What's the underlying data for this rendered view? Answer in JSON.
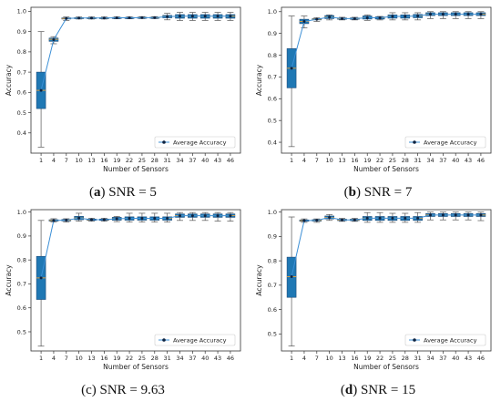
{
  "chart_data": [
    {
      "type": "box",
      "caption": {
        "label": "a",
        "rest": " SNR = 5"
      },
      "xlabel": "Number of Sensors",
      "ylabel": "Accuracy",
      "legend": "Average Accuracy",
      "legend_position": "bottom-right",
      "ylim": [
        0.3,
        1.02
      ],
      "yticks": [
        0.4,
        0.5,
        0.6,
        0.7,
        0.8,
        0.9,
        1.0
      ],
      "ytick_labels": [
        "0.4",
        "0.5",
        "0.6",
        "0.7",
        "0.8",
        "0.9",
        "1.0"
      ],
      "categories": [
        "1",
        "4",
        "7",
        "10",
        "13",
        "16",
        "19",
        "22",
        "25",
        "28",
        "31",
        "34",
        "37",
        "40",
        "43",
        "46"
      ],
      "average": [
        0.61,
        0.86,
        0.965,
        0.967,
        0.967,
        0.967,
        0.968,
        0.968,
        0.969,
        0.969,
        0.974,
        0.976,
        0.976,
        0.976,
        0.976,
        0.976
      ],
      "boxes": [
        {
          "q1": 0.52,
          "median": 0.61,
          "q3": 0.7,
          "low": 0.33,
          "high": 0.9
        },
        {
          "q1": 0.852,
          "median": 0.862,
          "q3": 0.868,
          "low": 0.84,
          "high": 0.875
        },
        {
          "q1": 0.962,
          "median": 0.965,
          "q3": 0.968,
          "low": 0.955,
          "high": 0.972
        },
        {
          "q1": 0.965,
          "median": 0.967,
          "q3": 0.969,
          "low": 0.962,
          "high": 0.972
        },
        {
          "q1": 0.965,
          "median": 0.967,
          "q3": 0.969,
          "low": 0.962,
          "high": 0.972
        },
        {
          "q1": 0.965,
          "median": 0.967,
          "q3": 0.969,
          "low": 0.962,
          "high": 0.972
        },
        {
          "q1": 0.966,
          "median": 0.968,
          "q3": 0.97,
          "low": 0.963,
          "high": 0.973
        },
        {
          "q1": 0.966,
          "median": 0.968,
          "q3": 0.97,
          "low": 0.963,
          "high": 0.973
        },
        {
          "q1": 0.967,
          "median": 0.969,
          "q3": 0.971,
          "low": 0.964,
          "high": 0.974
        },
        {
          "q1": 0.967,
          "median": 0.969,
          "q3": 0.971,
          "low": 0.964,
          "high": 0.974
        },
        {
          "q1": 0.968,
          "median": 0.974,
          "q3": 0.98,
          "low": 0.958,
          "high": 0.99
        },
        {
          "q1": 0.966,
          "median": 0.976,
          "q3": 0.984,
          "low": 0.955,
          "high": 0.995
        },
        {
          "q1": 0.966,
          "median": 0.976,
          "q3": 0.984,
          "low": 0.955,
          "high": 0.995
        },
        {
          "q1": 0.966,
          "median": 0.976,
          "q3": 0.984,
          "low": 0.955,
          "high": 0.995
        },
        {
          "q1": 0.966,
          "median": 0.976,
          "q3": 0.984,
          "low": 0.955,
          "high": 0.995
        },
        {
          "q1": 0.966,
          "median": 0.976,
          "q3": 0.984,
          "low": 0.955,
          "high": 0.995
        }
      ]
    },
    {
      "type": "box",
      "caption": {
        "label": "b",
        "rest": " SNR = 7"
      },
      "xlabel": "Number of Sensors",
      "ylabel": "Accuracy",
      "legend": "Average Accuracy",
      "legend_position": "bottom-right",
      "ylim": [
        0.35,
        1.02
      ],
      "yticks": [
        0.4,
        0.5,
        0.6,
        0.7,
        0.8,
        0.9,
        1.0
      ],
      "ytick_labels": [
        "0.4",
        "0.5",
        "0.6",
        "0.7",
        "0.8",
        "0.9",
        "1.0"
      ],
      "categories": [
        "1",
        "4",
        "7",
        "10",
        "13",
        "16",
        "19",
        "22",
        "25",
        "28",
        "31",
        "34",
        "37",
        "40",
        "43",
        "46"
      ],
      "average": [
        0.74,
        0.955,
        0.965,
        0.975,
        0.968,
        0.968,
        0.972,
        0.972,
        0.978,
        0.978,
        0.98,
        0.988,
        0.988,
        0.988,
        0.988,
        0.988
      ],
      "boxes": [
        {
          "q1": 0.65,
          "median": 0.74,
          "q3": 0.83,
          "low": 0.38,
          "high": 0.98
        },
        {
          "q1": 0.945,
          "median": 0.955,
          "q3": 0.965,
          "low": 0.925,
          "high": 0.98
        },
        {
          "q1": 0.962,
          "median": 0.965,
          "q3": 0.968,
          "low": 0.955,
          "high": 0.972
        },
        {
          "q1": 0.968,
          "median": 0.975,
          "q3": 0.982,
          "low": 0.962,
          "high": 0.985
        },
        {
          "q1": 0.965,
          "median": 0.968,
          "q3": 0.971,
          "low": 0.962,
          "high": 0.974
        },
        {
          "q1": 0.965,
          "median": 0.968,
          "q3": 0.971,
          "low": 0.962,
          "high": 0.974
        },
        {
          "q1": 0.966,
          "median": 0.972,
          "q3": 0.98,
          "low": 0.96,
          "high": 0.985
        },
        {
          "q1": 0.966,
          "median": 0.972,
          "q3": 0.976,
          "low": 0.962,
          "high": 0.978
        },
        {
          "q1": 0.97,
          "median": 0.978,
          "q3": 0.985,
          "low": 0.962,
          "high": 0.995
        },
        {
          "q1": 0.97,
          "median": 0.978,
          "q3": 0.985,
          "low": 0.962,
          "high": 0.995
        },
        {
          "q1": 0.972,
          "median": 0.98,
          "q3": 0.987,
          "low": 0.962,
          "high": 0.995
        },
        {
          "q1": 0.982,
          "median": 0.988,
          "q3": 0.995,
          "low": 0.968,
          "high": 1.0
        },
        {
          "q1": 0.982,
          "median": 0.988,
          "q3": 0.995,
          "low": 0.968,
          "high": 1.0
        },
        {
          "q1": 0.982,
          "median": 0.988,
          "q3": 0.995,
          "low": 0.968,
          "high": 1.0
        },
        {
          "q1": 0.982,
          "median": 0.988,
          "q3": 0.995,
          "low": 0.968,
          "high": 1.0
        },
        {
          "q1": 0.982,
          "median": 0.988,
          "q3": 0.995,
          "low": 0.968,
          "high": 1.0
        }
      ]
    },
    {
      "type": "box",
      "caption": {
        "label": "",
        "rest": "(c) SNR = 9.63"
      },
      "xlabel": "Number of Sensors",
      "ylabel": "Accuracy",
      "legend": "Average Accuracy",
      "legend_position": "bottom-right",
      "ylim": [
        0.42,
        1.01
      ],
      "yticks": [
        0.5,
        0.6,
        0.7,
        0.8,
        0.9,
        1.0
      ],
      "ytick_labels": [
        "0.5",
        "0.6",
        "0.7",
        "0.8",
        "0.9",
        "1.0"
      ],
      "categories": [
        "1",
        "4",
        "7",
        "10",
        "13",
        "16",
        "19",
        "22",
        "25",
        "28",
        "31",
        "34",
        "37",
        "40",
        "43",
        "46"
      ],
      "average": [
        0.725,
        0.965,
        0.966,
        0.975,
        0.968,
        0.968,
        0.972,
        0.974,
        0.974,
        0.974,
        0.974,
        0.985,
        0.985,
        0.985,
        0.985,
        0.985
      ],
      "boxes": [
        {
          "q1": 0.635,
          "median": 0.725,
          "q3": 0.815,
          "low": 0.44,
          "high": 0.965
        },
        {
          "q1": 0.962,
          "median": 0.965,
          "q3": 0.968,
          "low": 0.958,
          "high": 0.972
        },
        {
          "q1": 0.963,
          "median": 0.966,
          "q3": 0.969,
          "low": 0.958,
          "high": 0.972
        },
        {
          "q1": 0.968,
          "median": 0.975,
          "q3": 0.982,
          "low": 0.962,
          "high": 0.995
        },
        {
          "q1": 0.965,
          "median": 0.968,
          "q3": 0.971,
          "low": 0.962,
          "high": 0.974
        },
        {
          "q1": 0.965,
          "median": 0.968,
          "q3": 0.971,
          "low": 0.962,
          "high": 0.974
        },
        {
          "q1": 0.966,
          "median": 0.972,
          "q3": 0.978,
          "low": 0.96,
          "high": 0.982
        },
        {
          "q1": 0.966,
          "median": 0.974,
          "q3": 0.98,
          "low": 0.958,
          "high": 0.995
        },
        {
          "q1": 0.966,
          "median": 0.974,
          "q3": 0.98,
          "low": 0.958,
          "high": 0.995
        },
        {
          "q1": 0.966,
          "median": 0.974,
          "q3": 0.98,
          "low": 0.958,
          "high": 0.995
        },
        {
          "q1": 0.966,
          "median": 0.974,
          "q3": 0.98,
          "low": 0.958,
          "high": 0.995
        },
        {
          "q1": 0.978,
          "median": 0.985,
          "q3": 0.992,
          "low": 0.965,
          "high": 0.998
        },
        {
          "q1": 0.978,
          "median": 0.985,
          "q3": 0.992,
          "low": 0.965,
          "high": 0.998
        },
        {
          "q1": 0.978,
          "median": 0.985,
          "q3": 0.992,
          "low": 0.965,
          "high": 0.998
        },
        {
          "q1": 0.978,
          "median": 0.985,
          "q3": 0.992,
          "low": 0.962,
          "high": 0.998
        },
        {
          "q1": 0.978,
          "median": 0.985,
          "q3": 0.992,
          "low": 0.962,
          "high": 0.998
        }
      ]
    },
    {
      "type": "box",
      "caption": {
        "label": "d",
        "rest": " SNR = 15"
      },
      "xlabel": "Number of Sensors",
      "ylabel": "Accuracy",
      "legend": "Average Accuracy",
      "legend_position": "bottom-right",
      "ylim": [
        0.43,
        1.01
      ],
      "yticks": [
        0.5,
        0.6,
        0.7,
        0.8,
        0.9,
        1.0
      ],
      "ytick_labels": [
        "0.5",
        "0.6",
        "0.7",
        "0.8",
        "0.9",
        "1.0"
      ],
      "categories": [
        "1",
        "4",
        "7",
        "10",
        "13",
        "16",
        "19",
        "22",
        "25",
        "28",
        "31",
        "34",
        "37",
        "40",
        "43",
        "46"
      ],
      "average": [
        0.735,
        0.965,
        0.966,
        0.978,
        0.968,
        0.968,
        0.975,
        0.975,
        0.975,
        0.975,
        0.975,
        0.988,
        0.988,
        0.988,
        0.988,
        0.988
      ],
      "boxes": [
        {
          "q1": 0.65,
          "median": 0.735,
          "q3": 0.815,
          "low": 0.45,
          "high": 0.98
        },
        {
          "q1": 0.962,
          "median": 0.965,
          "q3": 0.968,
          "low": 0.958,
          "high": 0.972
        },
        {
          "q1": 0.963,
          "median": 0.966,
          "q3": 0.969,
          "low": 0.958,
          "high": 0.972
        },
        {
          "q1": 0.972,
          "median": 0.978,
          "q3": 0.984,
          "low": 0.966,
          "high": 0.99
        },
        {
          "q1": 0.965,
          "median": 0.968,
          "q3": 0.971,
          "low": 0.962,
          "high": 0.974
        },
        {
          "q1": 0.965,
          "median": 0.968,
          "q3": 0.971,
          "low": 0.962,
          "high": 0.974
        },
        {
          "q1": 0.966,
          "median": 0.975,
          "q3": 0.982,
          "low": 0.958,
          "high": 0.998
        },
        {
          "q1": 0.966,
          "median": 0.975,
          "q3": 0.982,
          "low": 0.958,
          "high": 0.998
        },
        {
          "q1": 0.966,
          "median": 0.975,
          "q3": 0.982,
          "low": 0.958,
          "high": 0.995
        },
        {
          "q1": 0.966,
          "median": 0.975,
          "q3": 0.982,
          "low": 0.958,
          "high": 0.995
        },
        {
          "q1": 0.966,
          "median": 0.975,
          "q3": 0.982,
          "low": 0.958,
          "high": 0.998
        },
        {
          "q1": 0.982,
          "median": 0.988,
          "q3": 0.994,
          "low": 0.968,
          "high": 1.0
        },
        {
          "q1": 0.982,
          "median": 0.988,
          "q3": 0.994,
          "low": 0.968,
          "high": 1.0
        },
        {
          "q1": 0.982,
          "median": 0.988,
          "q3": 0.994,
          "low": 0.968,
          "high": 1.0
        },
        {
          "q1": 0.982,
          "median": 0.988,
          "q3": 0.994,
          "low": 0.968,
          "high": 1.0
        },
        {
          "q1": 0.982,
          "median": 0.988,
          "q3": 0.994,
          "low": 0.965,
          "high": 1.0
        }
      ]
    }
  ],
  "colors": {
    "box_fill": "#1f78b4",
    "box_edge": "#1a4a7a",
    "median": "#e8a33d",
    "line": "#3b8fd6",
    "marker": "#0d2240",
    "whisker": "#555555",
    "axis": "#333333"
  }
}
